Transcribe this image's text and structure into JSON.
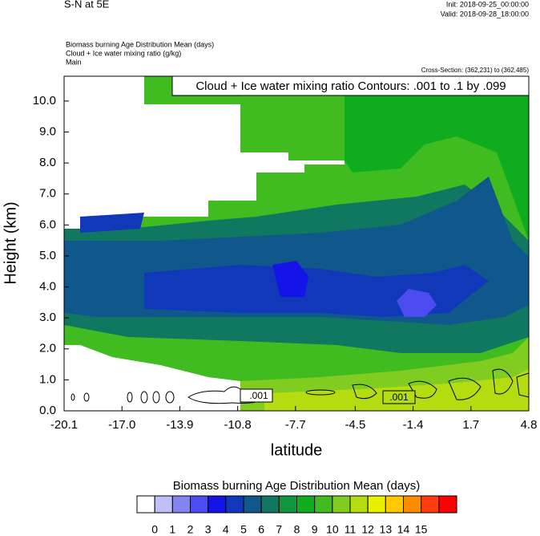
{
  "chart_data": {
    "type": "contour",
    "title": "S-N at 5E",
    "init": "Init: 2018-09-25_00:00:00",
    "valid": "Valid: 2018-09-28_18:00:00",
    "subtitles": [
      "Biomass burning Age Distribution Mean   (days)",
      "Cloud + Ice water mixing ratio   (g/kg)",
      "Main"
    ],
    "cross_section": "Cross-Section: (362,231) to (362,485)",
    "contour_note": "Cloud + Ice water mixing ratio Contours: .001 to .1 by .099",
    "contour_labels": [
      ".001",
      ".001"
    ],
    "xlabel": "latitude",
    "ylabel": "Height (km)",
    "xlim": [
      -20.1,
      4.8
    ],
    "ylim": [
      0,
      10.8
    ],
    "xticks": [
      -20.1,
      {
        "value": -17,
        "label": "-17.0"
      },
      -13.9,
      -10.8,
      -7.7,
      -4.5,
      -1.4,
      1.7,
      4.8
    ],
    "yticks": [
      {
        "value": 0,
        "label": "0.0"
      },
      {
        "value": 1,
        "label": "1.0"
      },
      {
        "value": 2,
        "label": "2.0"
      },
      {
        "value": 3,
        "label": "3.0"
      },
      {
        "value": 4,
        "label": "4.0"
      },
      {
        "value": 5,
        "label": "5.0"
      },
      {
        "value": 6,
        "label": "6.0"
      },
      {
        "value": 7,
        "label": "7.0"
      },
      {
        "value": 8,
        "label": "8.0"
      },
      {
        "value": 9,
        "label": "9.0"
      },
      {
        "value": 10,
        "label": "10.0"
      }
    ],
    "colorbar": {
      "title": "Biomass burning Age Distribution Mean  (days)",
      "levels": [
        0,
        1,
        2,
        3,
        4,
        5,
        6,
        7,
        8,
        9,
        10,
        11,
        12,
        13,
        14,
        15
      ],
      "colors": [
        "#ffffff",
        "#c0c0f8",
        "#8484f0",
        "#4c4cf0",
        "#1414e8",
        "#1038b8",
        "#10588c",
        "#107860",
        "#10963c",
        "#10ac20",
        "#40bc20",
        "#80cc20",
        "#b4dc10",
        "#e8f000",
        "#ffc800",
        "#ff8c00",
        "#ff3c10",
        "#ff0000"
      ]
    }
  }
}
